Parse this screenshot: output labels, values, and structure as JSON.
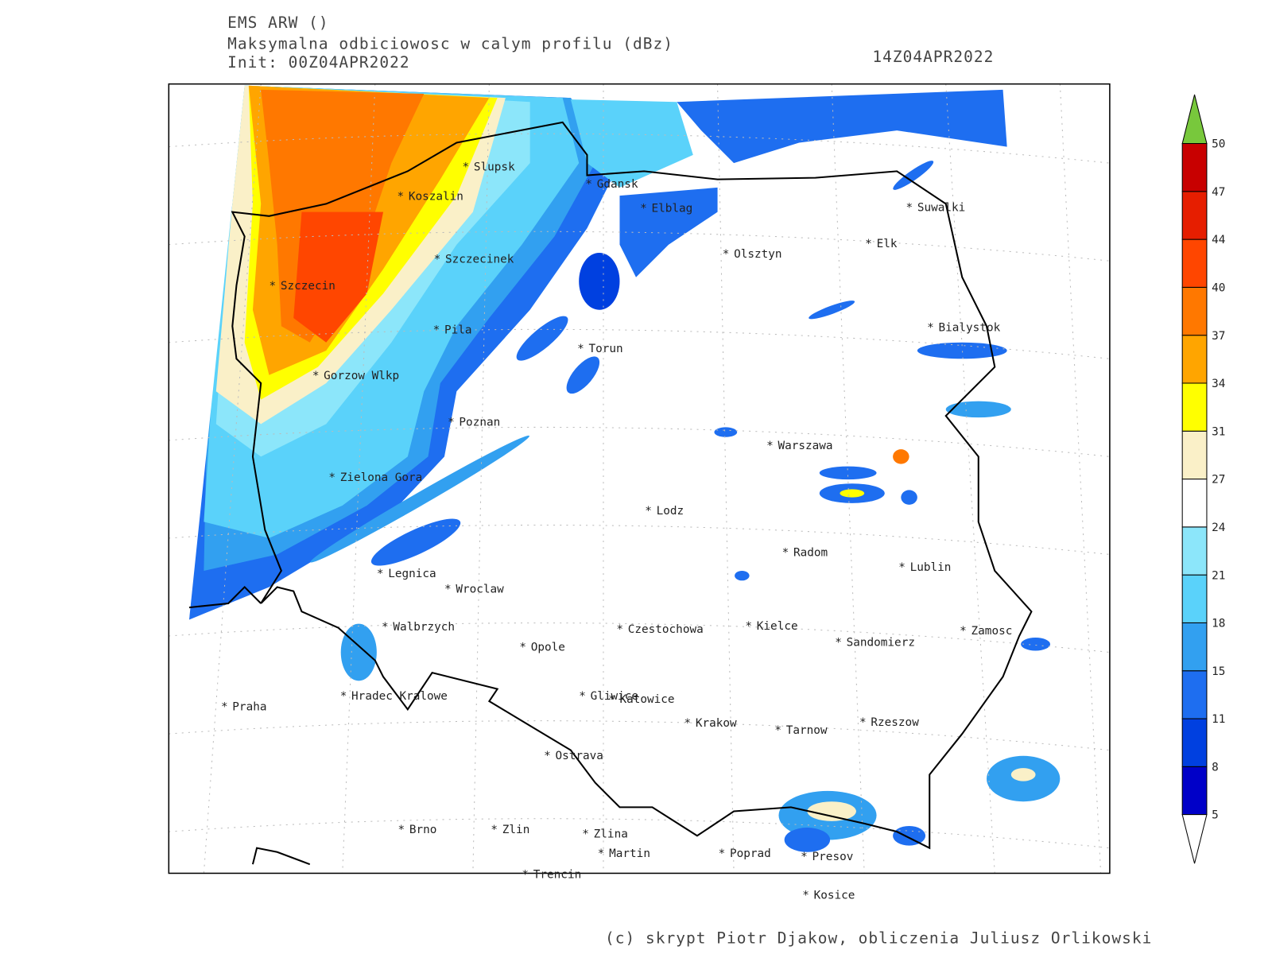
{
  "header": {
    "model": "EMS ARW ()",
    "title": "Maksymalna odbiciowosc w calym profilu (dBz)",
    "init": "Init: 00Z04APR2022",
    "valid": "14Z04APR2022"
  },
  "cities": [
    "Slupsk",
    "Koszalin",
    "Gdansk",
    "Elblag",
    "Suwalki",
    "Elk",
    "Olsztyn",
    "Szczecinek",
    "Szczecin",
    "Bialystok",
    "Pila",
    "Torun",
    "Gorzow Wlkp",
    "Poznan",
    "Warszawa",
    "Zielona Gora",
    "Lodz",
    "Radom",
    "Lublin",
    "Legnica",
    "Wroclaw",
    "Walbrzych",
    "Czestochowa",
    "Kielce",
    "Zamosc",
    "Sandomierz",
    "Opole",
    "Praha",
    "Hradec Kralowe",
    "Gliwice",
    "Katowice",
    "Krakow",
    "Tarnow",
    "Rzeszow",
    "Ostrava",
    "Brno",
    "Zlin",
    "Zlina",
    "Martin",
    "Poprad",
    "Presov",
    "Trencin",
    "Kosice"
  ],
  "colorbar": {
    "levels": [
      5,
      8,
      11,
      15,
      18,
      21,
      24,
      27,
      31,
      34,
      37,
      40,
      44,
      47,
      50
    ],
    "colors": [
      "#0000c8",
      "#0040e0",
      "#1e6ef0",
      "#32a0f0",
      "#5ad2fa",
      "#8ce6fa",
      "#ffffff",
      "#faf0c8",
      "#ffff00",
      "#ffa500",
      "#ff7800",
      "#ff4600",
      "#e61e00",
      "#c80000"
    ],
    "under": "#ffffff",
    "over": "#78c83c"
  },
  "footer": "(c) skrypt Piotr Djakow, obliczenia Juliusz Orlikowski"
}
